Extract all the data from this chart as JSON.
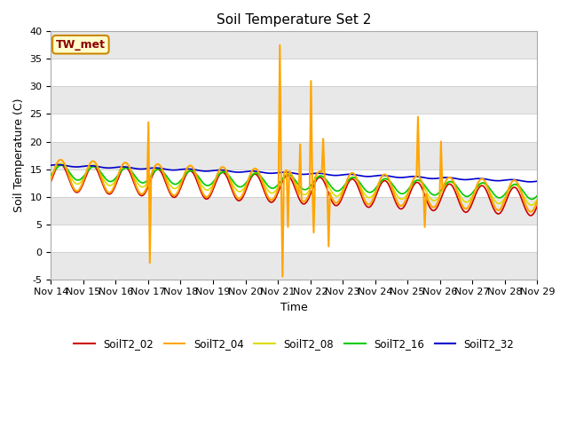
{
  "title": "Soil Temperature Set 2",
  "xlabel": "Time",
  "ylabel": "Soil Temperature (C)",
  "ylim": [
    -5,
    40
  ],
  "xlim": [
    0,
    15
  ],
  "fig_bg_color": "#ffffff",
  "plot_bg_color": "#ffffff",
  "series_colors": {
    "SoilT2_02": "#cc0000",
    "SoilT2_04": "#ffa500",
    "SoilT2_08": "#dddd00",
    "SoilT2_16": "#00cc00",
    "SoilT2_32": "#0000cc"
  },
  "xtick_labels": [
    "Nov 14",
    "Nov 15",
    "Nov 16",
    "Nov 17",
    "Nov 18",
    "Nov 19",
    "Nov 20",
    "Nov 21",
    "Nov 22",
    "Nov 23",
    "Nov 24",
    "Nov 25",
    "Nov 26",
    "Nov 27",
    "Nov 28",
    "Nov 29"
  ],
  "ytick_vals": [
    -5,
    0,
    5,
    10,
    15,
    20,
    25,
    30,
    35,
    40
  ],
  "annotation_text": "TW_met",
  "annotation_box_color": "#ffffcc",
  "annotation_border_color": "#cc8800",
  "band_color": "#e8e8e8",
  "grid_color": "#cccccc",
  "title_fontsize": 11,
  "axis_fontsize": 9,
  "tick_fontsize": 8
}
